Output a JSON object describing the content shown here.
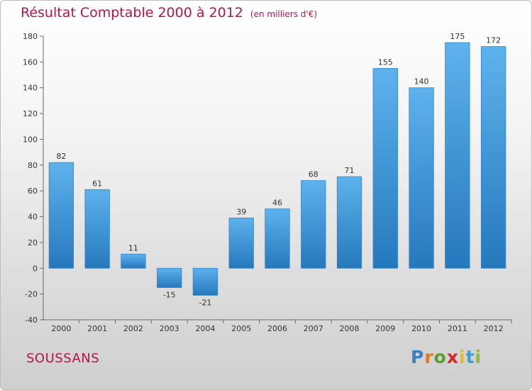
{
  "title": "Résultat Comptable 2000 à 2012",
  "subtitle": "(en milliers d'€)",
  "city": "SOUSSANS",
  "logo": {
    "text": "Proxiti",
    "colors": [
      "#3a7fc4",
      "#e8731f",
      "#5a9f2a",
      "#d8262e",
      "#e8b81f",
      "#3a9fd8",
      "#8bbd2a"
    ]
  },
  "colors": {
    "bar": "#3d95d9",
    "bar_light": "#5eb2ec",
    "bar_dark": "#2678bd",
    "title": "#b0174b"
  },
  "chart_data": {
    "type": "bar",
    "categories": [
      "2000",
      "2001",
      "2002",
      "2003",
      "2004",
      "2005",
      "2006",
      "2007",
      "2008",
      "2009",
      "2010",
      "2011",
      "2012"
    ],
    "values": [
      82,
      61,
      11,
      -15,
      -21,
      39,
      46,
      68,
      71,
      155,
      140,
      175,
      172
    ],
    "ylim": [
      -40,
      180
    ],
    "yticks": [
      -40,
      -20,
      0,
      20,
      40,
      60,
      80,
      100,
      120,
      140,
      160,
      180
    ],
    "grid": false,
    "legend": "none"
  }
}
